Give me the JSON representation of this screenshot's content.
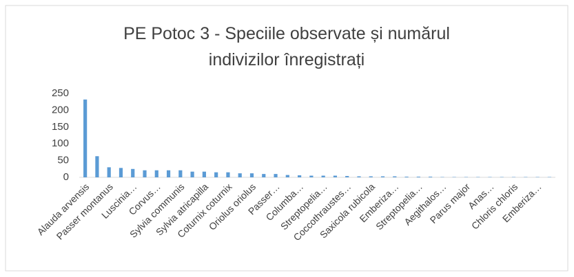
{
  "chart_data": {
    "type": "bar",
    "title": "PE Potoc 3 - Speciile observate și numărul indivizilor înregistrați",
    "categories": [
      "Alauda arvensis",
      null,
      "Passer montanus",
      null,
      "Luscinia…",
      null,
      "Corvus…",
      null,
      "Sylvia communis",
      null,
      "Sylvia atricapilla",
      null,
      "Coturnix coturnix",
      null,
      "Oriolus oriolus",
      null,
      "Passer…",
      null,
      "Columba…",
      null,
      "Streptopelia…",
      null,
      "Coccothraustes…",
      null,
      "Saxicola rubicola",
      null,
      "Emberiza…",
      null,
      "Streptopelia…",
      null,
      "Aegithalos…",
      null,
      "Parus major",
      null,
      "Anas…",
      null,
      "Chloris chloris",
      null,
      "Emberiza…",
      null
    ],
    "values": [
      232,
      63,
      30,
      28,
      25,
      21,
      21,
      21,
      21,
      17,
      17,
      15,
      15,
      12,
      12,
      10,
      10,
      7,
      6,
      5,
      5,
      5,
      4,
      3,
      3,
      3,
      3,
      2,
      2,
      2,
      1,
      1,
      1,
      1,
      1,
      1,
      1,
      1,
      1,
      1
    ],
    "color": "#5b9bd5",
    "ylim": [
      0,
      250
    ],
    "yticks": [
      0,
      50,
      100,
      150,
      200,
      250
    ],
    "grid": false
  }
}
